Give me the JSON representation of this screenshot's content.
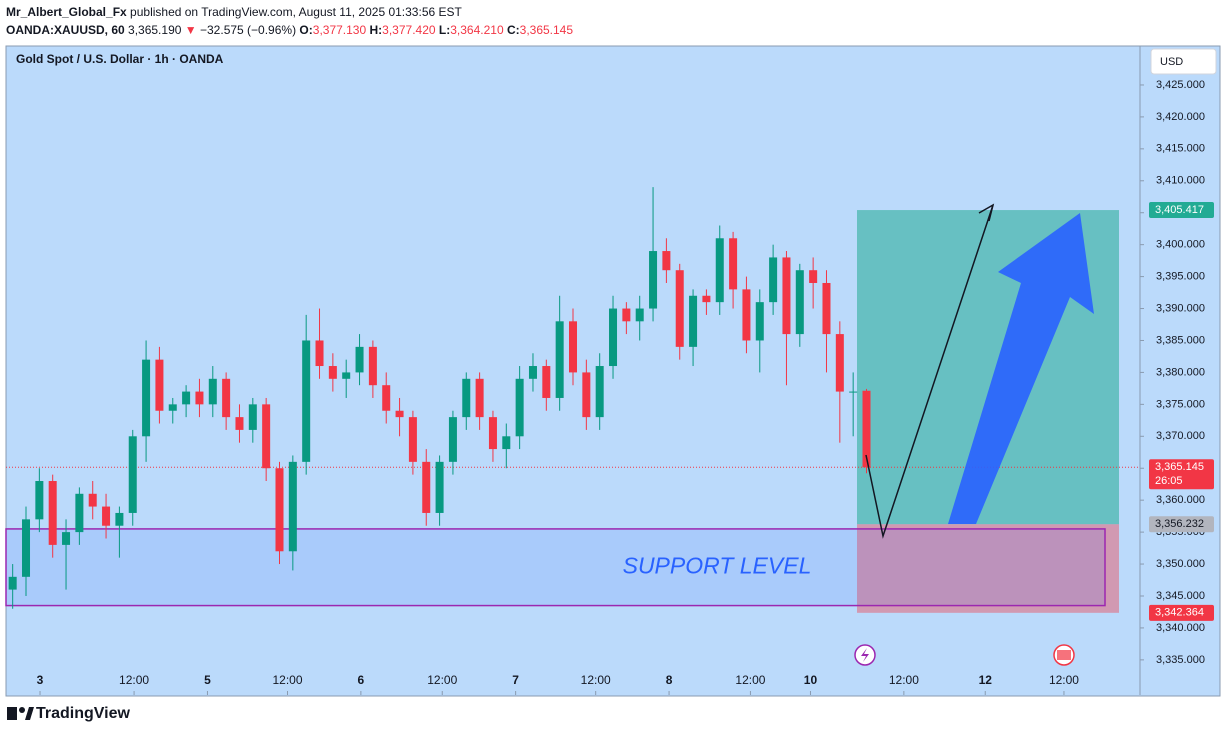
{
  "header": {
    "author": "Mr_Albert_Global_Fx",
    "published": "published on TradingView.com, August 11, 2025 01:33:56 EST",
    "symbol": "OANDA:XAUUSD, 60",
    "last": "3,365.190",
    "arrow": "▼",
    "change": "−32.575 (−0.96%)",
    "o_label": "O:",
    "o": "3,377.130",
    "h_label": "H:",
    "h": "3,377.420",
    "l_label": "L:",
    "l": "3,364.210",
    "c_label": "C:",
    "c": "3,365.145"
  },
  "chart_data": {
    "type": "candlestick",
    "title": "Gold Spot / U.S. Dollar · 1h · OANDA",
    "currency": "USD",
    "up_color": "#089981",
    "down_color": "#f23645",
    "grid": false,
    "open": [
      3346,
      3348,
      3357,
      3363,
      3353,
      3355,
      3361,
      3359,
      3356,
      3358,
      3370,
      3382,
      3374,
      3375,
      3377,
      3375,
      3379,
      3373,
      3371,
      3375,
      3365,
      3352,
      3366,
      3385,
      3381,
      3379,
      3380,
      3384,
      3378,
      3374,
      3373,
      3366,
      3358,
      3366,
      3373,
      3379,
      3373,
      3368,
      3370,
      3379,
      3381,
      3376,
      3388,
      3380,
      3373,
      3381,
      3390,
      3388,
      3390,
      3399,
      3396,
      3384,
      3392,
      3391,
      3401,
      3393,
      3385,
      3391,
      3398,
      3386,
      3396,
      3394,
      3386,
      3377,
      3377.13
    ],
    "high": [
      3350,
      3359,
      3365,
      3364,
      3357,
      3362,
      3363,
      3361,
      3359,
      3371,
      3385,
      3384,
      3376,
      3378,
      3379,
      3381,
      3380,
      3375,
      3376,
      3376,
      3366,
      3367,
      3389,
      3390,
      3383,
      3382,
      3386,
      3385,
      3380,
      3376,
      3374,
      3368,
      3367,
      3374,
      3380,
      3380,
      3374,
      3372,
      3381,
      3383,
      3382,
      3392,
      3390,
      3382,
      3383,
      3392,
      3391,
      3392,
      3409,
      3401,
      3397,
      3393,
      3393,
      3403,
      3402,
      3395,
      3393,
      3400,
      3399,
      3397,
      3398,
      3396,
      3388,
      3380,
      3377.42
    ],
    "low": [
      3343,
      3345,
      3355,
      3351,
      3346,
      3353,
      3357,
      3354,
      3351,
      3356,
      3366,
      3372,
      3372,
      3373,
      3373,
      3373,
      3371,
      3369,
      3369,
      3363,
      3350,
      3349,
      3364,
      3379,
      3377,
      3376,
      3378,
      3376,
      3372,
      3370,
      3364,
      3356,
      3356,
      3364,
      3371,
      3371,
      3366,
      3365,
      3368,
      3377,
      3374,
      3374,
      3378,
      3371,
      3371,
      3379,
      3386,
      3385,
      3388,
      3394,
      3382,
      3381,
      3389,
      3389,
      3390,
      3383,
      3380,
      3389,
      3378,
      3384,
      3390,
      3380,
      3369,
      3370,
      3364.21
    ],
    "close": [
      3348,
      3357,
      3363,
      3353,
      3355,
      3361,
      3359,
      3356,
      3358,
      3370,
      3382,
      3374,
      3375,
      3377,
      3375,
      3379,
      3373,
      3371,
      3375,
      3365,
      3352,
      3366,
      3385,
      3381,
      3379,
      3380,
      3384,
      3378,
      3374,
      3373,
      3366,
      3358,
      3366,
      3373,
      3379,
      3373,
      3368,
      3370,
      3379,
      3381,
      3376,
      3388,
      3380,
      3373,
      3381,
      3390,
      3388,
      3390,
      3399,
      3396,
      3384,
      3392,
      3391,
      3401,
      3393,
      3385,
      3391,
      3398,
      3386,
      3396,
      3394,
      3386,
      3377,
      3377,
      3365.145
    ],
    "xlim": [
      -0.5,
      84.5
    ],
    "xticks": [
      {
        "value": 2.05,
        "label": "3"
      },
      {
        "value": 9.1,
        "label": "12:00"
      },
      {
        "value": 14.6,
        "label": "5"
      },
      {
        "value": 20.6,
        "label": "12:00"
      },
      {
        "value": 26.1,
        "label": "6"
      },
      {
        "value": 32.2,
        "label": "12:00"
      },
      {
        "value": 37.7,
        "label": "7"
      },
      {
        "value": 43.7,
        "label": "12:00"
      },
      {
        "value": 49.2,
        "label": "8"
      },
      {
        "value": 55.3,
        "label": "12:00"
      },
      {
        "value": 59.8,
        "label": "10"
      },
      {
        "value": 66.8,
        "label": "12:00"
      },
      {
        "value": 72.9,
        "label": "12"
      },
      {
        "value": 78.8,
        "label": "12:00"
      }
    ],
    "ylim": [
      3329.5,
      3431.1
    ],
    "yticks": [
      {
        "value": 3335,
        "label": "3,335.000"
      },
      {
        "value": 3340,
        "label": "3,340.000"
      },
      {
        "value": 3345,
        "label": "3,345.000"
      },
      {
        "value": 3350,
        "label": "3,350.000"
      },
      {
        "value": 3355,
        "label": "3,355.000"
      },
      {
        "value": 3360,
        "label": "3,360.000"
      },
      {
        "value": 3365,
        "label": "3,365.000"
      },
      {
        "value": 3370,
        "label": "3,370.000"
      },
      {
        "value": 3375,
        "label": "3,375.000"
      },
      {
        "value": 3380,
        "label": "3,380.000"
      },
      {
        "value": 3385,
        "label": "3,385.000"
      },
      {
        "value": 3390,
        "label": "3,390.000"
      },
      {
        "value": 3395,
        "label": "3,395.000"
      },
      {
        "value": 3400,
        "label": "3,400.000"
      },
      {
        "value": 3405,
        "label": "3,405.000"
      },
      {
        "value": 3410,
        "label": "3,410.000"
      },
      {
        "value": 3415,
        "label": "3,415.000"
      },
      {
        "value": 3420,
        "label": "3,420.000"
      },
      {
        "value": 3425,
        "label": "3,425.000"
      }
    ],
    "support": {
      "label": "SUPPORT LEVEL",
      "top": 3355.5,
      "bottom": 3343.5
    },
    "target": {
      "value": 3405.417,
      "label": "3,405.417"
    },
    "entry": {
      "value": 3356.232,
      "label": "3,356.232"
    },
    "stop": {
      "value": 3342.364,
      "label": "3,342.364"
    },
    "current": {
      "value": 3365.145,
      "label": "3,365.145",
      "countdown": "26:05"
    }
  },
  "footer": {
    "brand": "TradingView"
  }
}
